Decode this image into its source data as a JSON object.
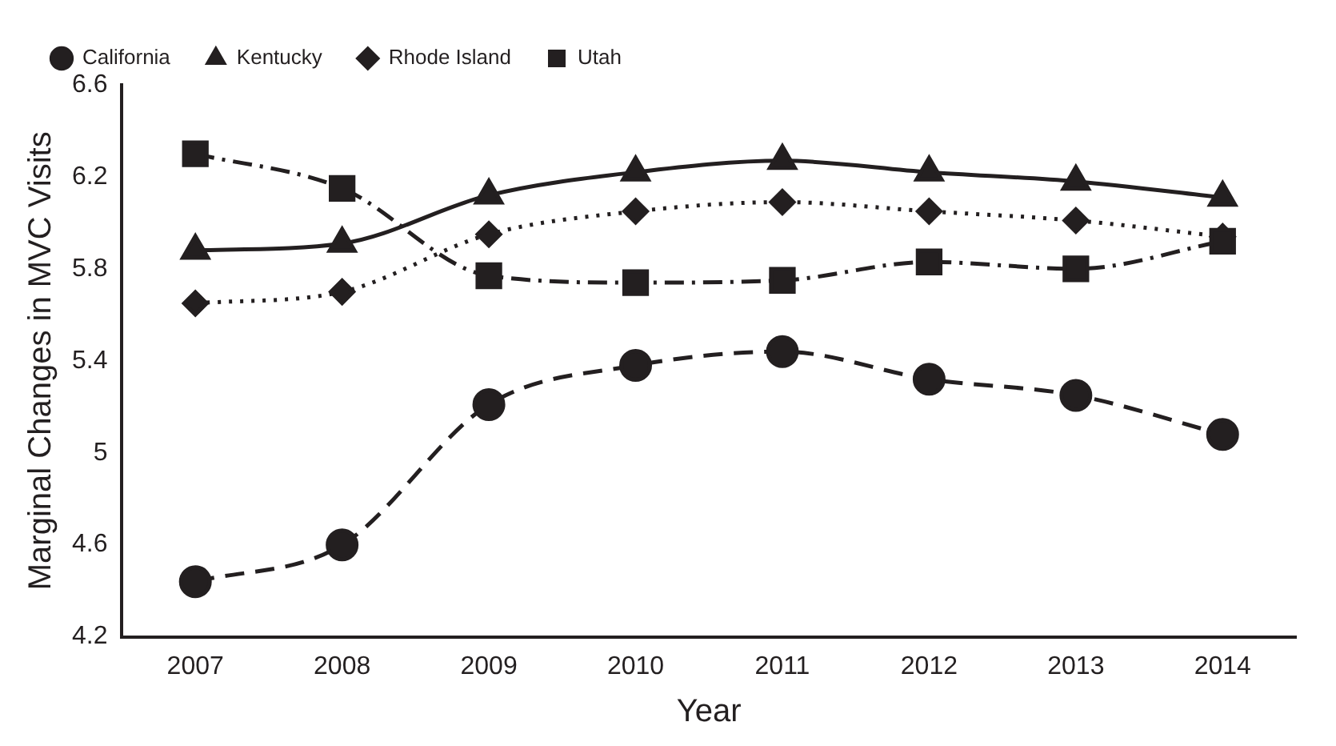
{
  "chart_data": {
    "type": "line",
    "xlabel": "Year",
    "ylabel": "Marginal Changes in MVC Visits",
    "categories": [
      "2007",
      "2008",
      "2009",
      "2010",
      "2011",
      "2012",
      "2013",
      "2014"
    ],
    "series": [
      {
        "name": "California",
        "color": "#231f20",
        "marker": "circle",
        "line_style": "dashed",
        "values": [
          4.44,
          4.6,
          5.21,
          5.38,
          5.44,
          5.32,
          5.25,
          5.08
        ]
      },
      {
        "name": "Kentucky",
        "color": "#231f20",
        "marker": "triangle",
        "line_style": "solid",
        "values": [
          5.88,
          5.91,
          6.12,
          6.22,
          6.27,
          6.22,
          6.18,
          6.11
        ]
      },
      {
        "name": "Rhode Island",
        "color": "#231f20",
        "marker": "diamond",
        "line_style": "dotted",
        "values": [
          5.65,
          5.7,
          5.95,
          6.05,
          6.09,
          6.05,
          6.01,
          5.94
        ]
      },
      {
        "name": "Utah",
        "color": "#231f20",
        "marker": "square",
        "line_style": "dashdot",
        "values": [
          6.3,
          6.15,
          5.77,
          5.74,
          5.75,
          5.83,
          5.8,
          5.92
        ]
      }
    ],
    "ylim": [
      4.2,
      6.6
    ],
    "yticks": [
      4.2,
      4.6,
      5,
      5.4,
      5.8,
      6.2,
      6.6
    ],
    "grid": false,
    "legend": "top left"
  }
}
